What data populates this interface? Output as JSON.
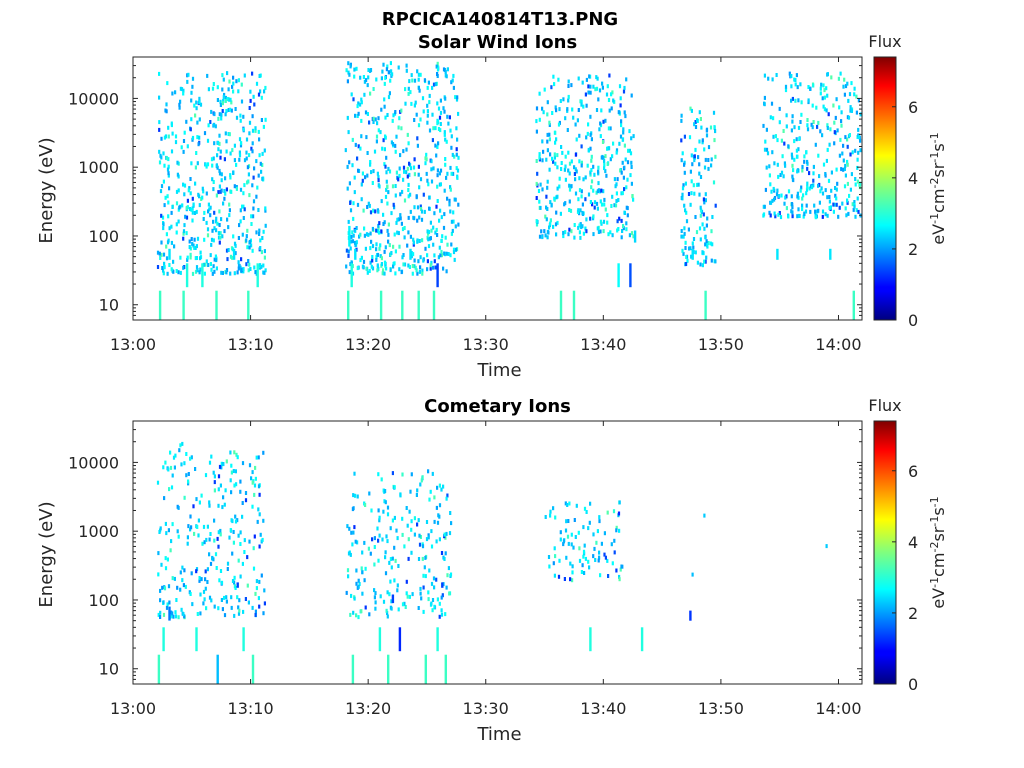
{
  "figure": {
    "filename": "RPCICA140814T13.PNG"
  },
  "chart_data": [
    {
      "type": "heatmap",
      "title": "Solar Wind Ions",
      "xlabel": "Time",
      "ylabel": "Energy (eV)",
      "yscale": "log",
      "xlim": [
        "13:00",
        "14:02"
      ],
      "ylim": [
        6,
        40000
      ],
      "x_ticks": [
        "13:00",
        "13:10",
        "13:20",
        "13:30",
        "13:40",
        "13:50",
        "14:00"
      ],
      "y_ticks": [
        "10",
        "100",
        "1000",
        "10000"
      ],
      "colorbar": {
        "label": "Flux",
        "unit": "eV-1cm-2sr-1s-1",
        "range": [
          0,
          7.4
        ],
        "ticks": [
          "0",
          "2",
          "4",
          "6"
        ],
        "colormap": "jet"
      },
      "bursts": [
        {
          "start_min": 2.0,
          "end_min": 11.2,
          "energy_min": 30,
          "energy_max": 25000
        },
        {
          "start_min": 18.0,
          "end_min": 27.6,
          "energy_min": 30,
          "energy_max": 35000
        },
        {
          "start_min": 34.2,
          "end_min": 42.5,
          "energy_min": 100,
          "energy_max": 23000
        },
        {
          "start_min": 46.5,
          "end_min": 49.5,
          "energy_min": 40,
          "energy_max": 8000
        },
        {
          "start_min": 53.5,
          "end_min": 62.0,
          "energy_min": 200,
          "energy_max": 25000
        }
      ],
      "lines": [
        {
          "time_min": 2.2,
          "energy_min": 6,
          "energy_max": 16,
          "flux": 3.2
        },
        {
          "time_min": 4.2,
          "energy_min": 6,
          "energy_max": 16,
          "flux": 3.2
        },
        {
          "time_min": 7.0,
          "energy_min": 6,
          "energy_max": 16,
          "flux": 3.2
        },
        {
          "time_min": 9.7,
          "energy_min": 6,
          "energy_max": 16,
          "flux": 3.2
        },
        {
          "time_min": 18.2,
          "energy_min": 6,
          "energy_max": 16,
          "flux": 3.2
        },
        {
          "time_min": 21.0,
          "energy_min": 6,
          "energy_max": 16,
          "flux": 3.2
        },
        {
          "time_min": 22.8,
          "energy_min": 6,
          "energy_max": 16,
          "flux": 3.2
        },
        {
          "time_min": 24.2,
          "energy_min": 6,
          "energy_max": 16,
          "flux": 3.2
        },
        {
          "time_min": 25.5,
          "energy_min": 6,
          "energy_max": 16,
          "flux": 3.2
        },
        {
          "time_min": 36.3,
          "energy_min": 6,
          "energy_max": 16,
          "flux": 3.2
        },
        {
          "time_min": 37.4,
          "energy_min": 6,
          "energy_max": 16,
          "flux": 3.2
        },
        {
          "time_min": 48.6,
          "energy_min": 6,
          "energy_max": 16,
          "flux": 3.2
        },
        {
          "time_min": 61.2,
          "energy_min": 6,
          "energy_max": 16,
          "flux": 3.2
        },
        {
          "time_min": 4.5,
          "energy_min": 18,
          "energy_max": 40,
          "flux": 3.0
        },
        {
          "time_min": 5.8,
          "energy_min": 18,
          "energy_max": 40,
          "flux": 3.0
        },
        {
          "time_min": 10.5,
          "energy_min": 18,
          "energy_max": 40,
          "flux": 3.0
        },
        {
          "time_min": 18.5,
          "energy_min": 18,
          "energy_max": 40,
          "flux": 3.0
        },
        {
          "time_min": 25.8,
          "energy_min": 18,
          "energy_max": 40,
          "flux": 1.4
        },
        {
          "time_min": 41.2,
          "energy_min": 18,
          "energy_max": 40,
          "flux": 2.8
        },
        {
          "time_min": 42.2,
          "energy_min": 18,
          "energy_max": 40,
          "flux": 1.5
        },
        {
          "time_min": 3.0,
          "energy_min": 45,
          "energy_max": 65,
          "flux": 2.6
        },
        {
          "time_min": 8.5,
          "energy_min": 45,
          "energy_max": 65,
          "flux": 2.6
        },
        {
          "time_min": 18.8,
          "energy_min": 45,
          "energy_max": 65,
          "flux": 2.6
        },
        {
          "time_min": 23.5,
          "energy_min": 45,
          "energy_max": 65,
          "flux": 2.6
        },
        {
          "time_min": 47.5,
          "energy_min": 45,
          "energy_max": 65,
          "flux": 2.6
        },
        {
          "time_min": 54.7,
          "energy_min": 45,
          "energy_max": 65,
          "flux": 2.6
        },
        {
          "time_min": 59.2,
          "energy_min": 45,
          "energy_max": 65,
          "flux": 2.6
        },
        {
          "time_min": 18.3,
          "energy_min": 70,
          "energy_max": 140,
          "flux": 2.7
        },
        {
          "time_min": 42.6,
          "energy_min": 80,
          "energy_max": 120,
          "flux": 2.5
        }
      ]
    },
    {
      "type": "heatmap",
      "title": "Cometary Ions",
      "xlabel": "Time",
      "ylabel": "Energy (eV)",
      "yscale": "log",
      "xlim": [
        "13:00",
        "14:02"
      ],
      "ylim": [
        6,
        40000
      ],
      "x_ticks": [
        "13:00",
        "13:10",
        "13:20",
        "13:30",
        "13:40",
        "13:50",
        "14:00"
      ],
      "y_ticks": [
        "10",
        "100",
        "1000",
        "10000"
      ],
      "colorbar": {
        "label": "Flux",
        "unit": "eV-1cm-2sr-1s-1",
        "range": [
          0,
          7.4
        ],
        "ticks": [
          "0",
          "2",
          "4",
          "6"
        ],
        "colormap": "jet"
      },
      "bursts": [
        {
          "start_min": 2.0,
          "end_min": 11.2,
          "energy_min": 60,
          "energy_max": 20000
        },
        {
          "start_min": 18.0,
          "end_min": 27.0,
          "energy_min": 60,
          "energy_max": 8000
        },
        {
          "start_min": 35.0,
          "end_min": 41.6,
          "energy_min": 200,
          "energy_max": 3000
        }
      ],
      "lines": [
        {
          "time_min": 2.1,
          "energy_min": 6,
          "energy_max": 16,
          "flux": 3.2
        },
        {
          "time_min": 10.1,
          "energy_min": 6,
          "energy_max": 16,
          "flux": 3.2
        },
        {
          "time_min": 18.6,
          "energy_min": 6,
          "energy_max": 16,
          "flux": 3.2
        },
        {
          "time_min": 21.6,
          "energy_min": 6,
          "energy_max": 16,
          "flux": 3.2
        },
        {
          "time_min": 24.8,
          "energy_min": 6,
          "energy_max": 16,
          "flux": 3.2
        },
        {
          "time_min": 26.5,
          "energy_min": 6,
          "energy_max": 16,
          "flux": 3.2
        },
        {
          "time_min": 7.1,
          "energy_min": 6,
          "energy_max": 16,
          "flux": 2.3
        },
        {
          "time_min": 2.5,
          "energy_min": 18,
          "energy_max": 40,
          "flux": 3.0
        },
        {
          "time_min": 5.3,
          "energy_min": 18,
          "energy_max": 40,
          "flux": 3.0
        },
        {
          "time_min": 9.3,
          "energy_min": 18,
          "energy_max": 40,
          "flux": 3.0
        },
        {
          "time_min": 20.9,
          "energy_min": 18,
          "energy_max": 40,
          "flux": 3.0
        },
        {
          "time_min": 25.8,
          "energy_min": 18,
          "energy_max": 40,
          "flux": 3.0
        },
        {
          "time_min": 38.8,
          "energy_min": 18,
          "energy_max": 40,
          "flux": 3.0
        },
        {
          "time_min": 43.2,
          "energy_min": 18,
          "energy_max": 40,
          "flux": 3.0
        },
        {
          "time_min": 22.6,
          "energy_min": 18,
          "energy_max": 40,
          "flux": 1.2
        },
        {
          "time_min": 47.3,
          "energy_min": 50,
          "energy_max": 70,
          "flux": 1.3
        },
        {
          "time_min": 3.0,
          "energy_min": 50,
          "energy_max": 80,
          "flux": 1.8
        },
        {
          "time_min": 22.0,
          "energy_min": 90,
          "energy_max": 120,
          "flux": 1.4
        },
        {
          "time_min": 8.8,
          "energy_min": 150,
          "energy_max": 180,
          "flux": 1.4
        },
        {
          "time_min": 26.2,
          "energy_min": 150,
          "energy_max": 180,
          "flux": 1.4
        }
      ],
      "points": [
        {
          "time_min": 41.3,
          "energy": 2800,
          "flux": 2.4
        },
        {
          "time_min": 48.5,
          "energy": 1800,
          "flux": 2.4
        },
        {
          "time_min": 47.5,
          "energy": 250,
          "flux": 2.3
        },
        {
          "time_min": 58.9,
          "energy": 650,
          "flux": 2.4
        }
      ]
    }
  ]
}
